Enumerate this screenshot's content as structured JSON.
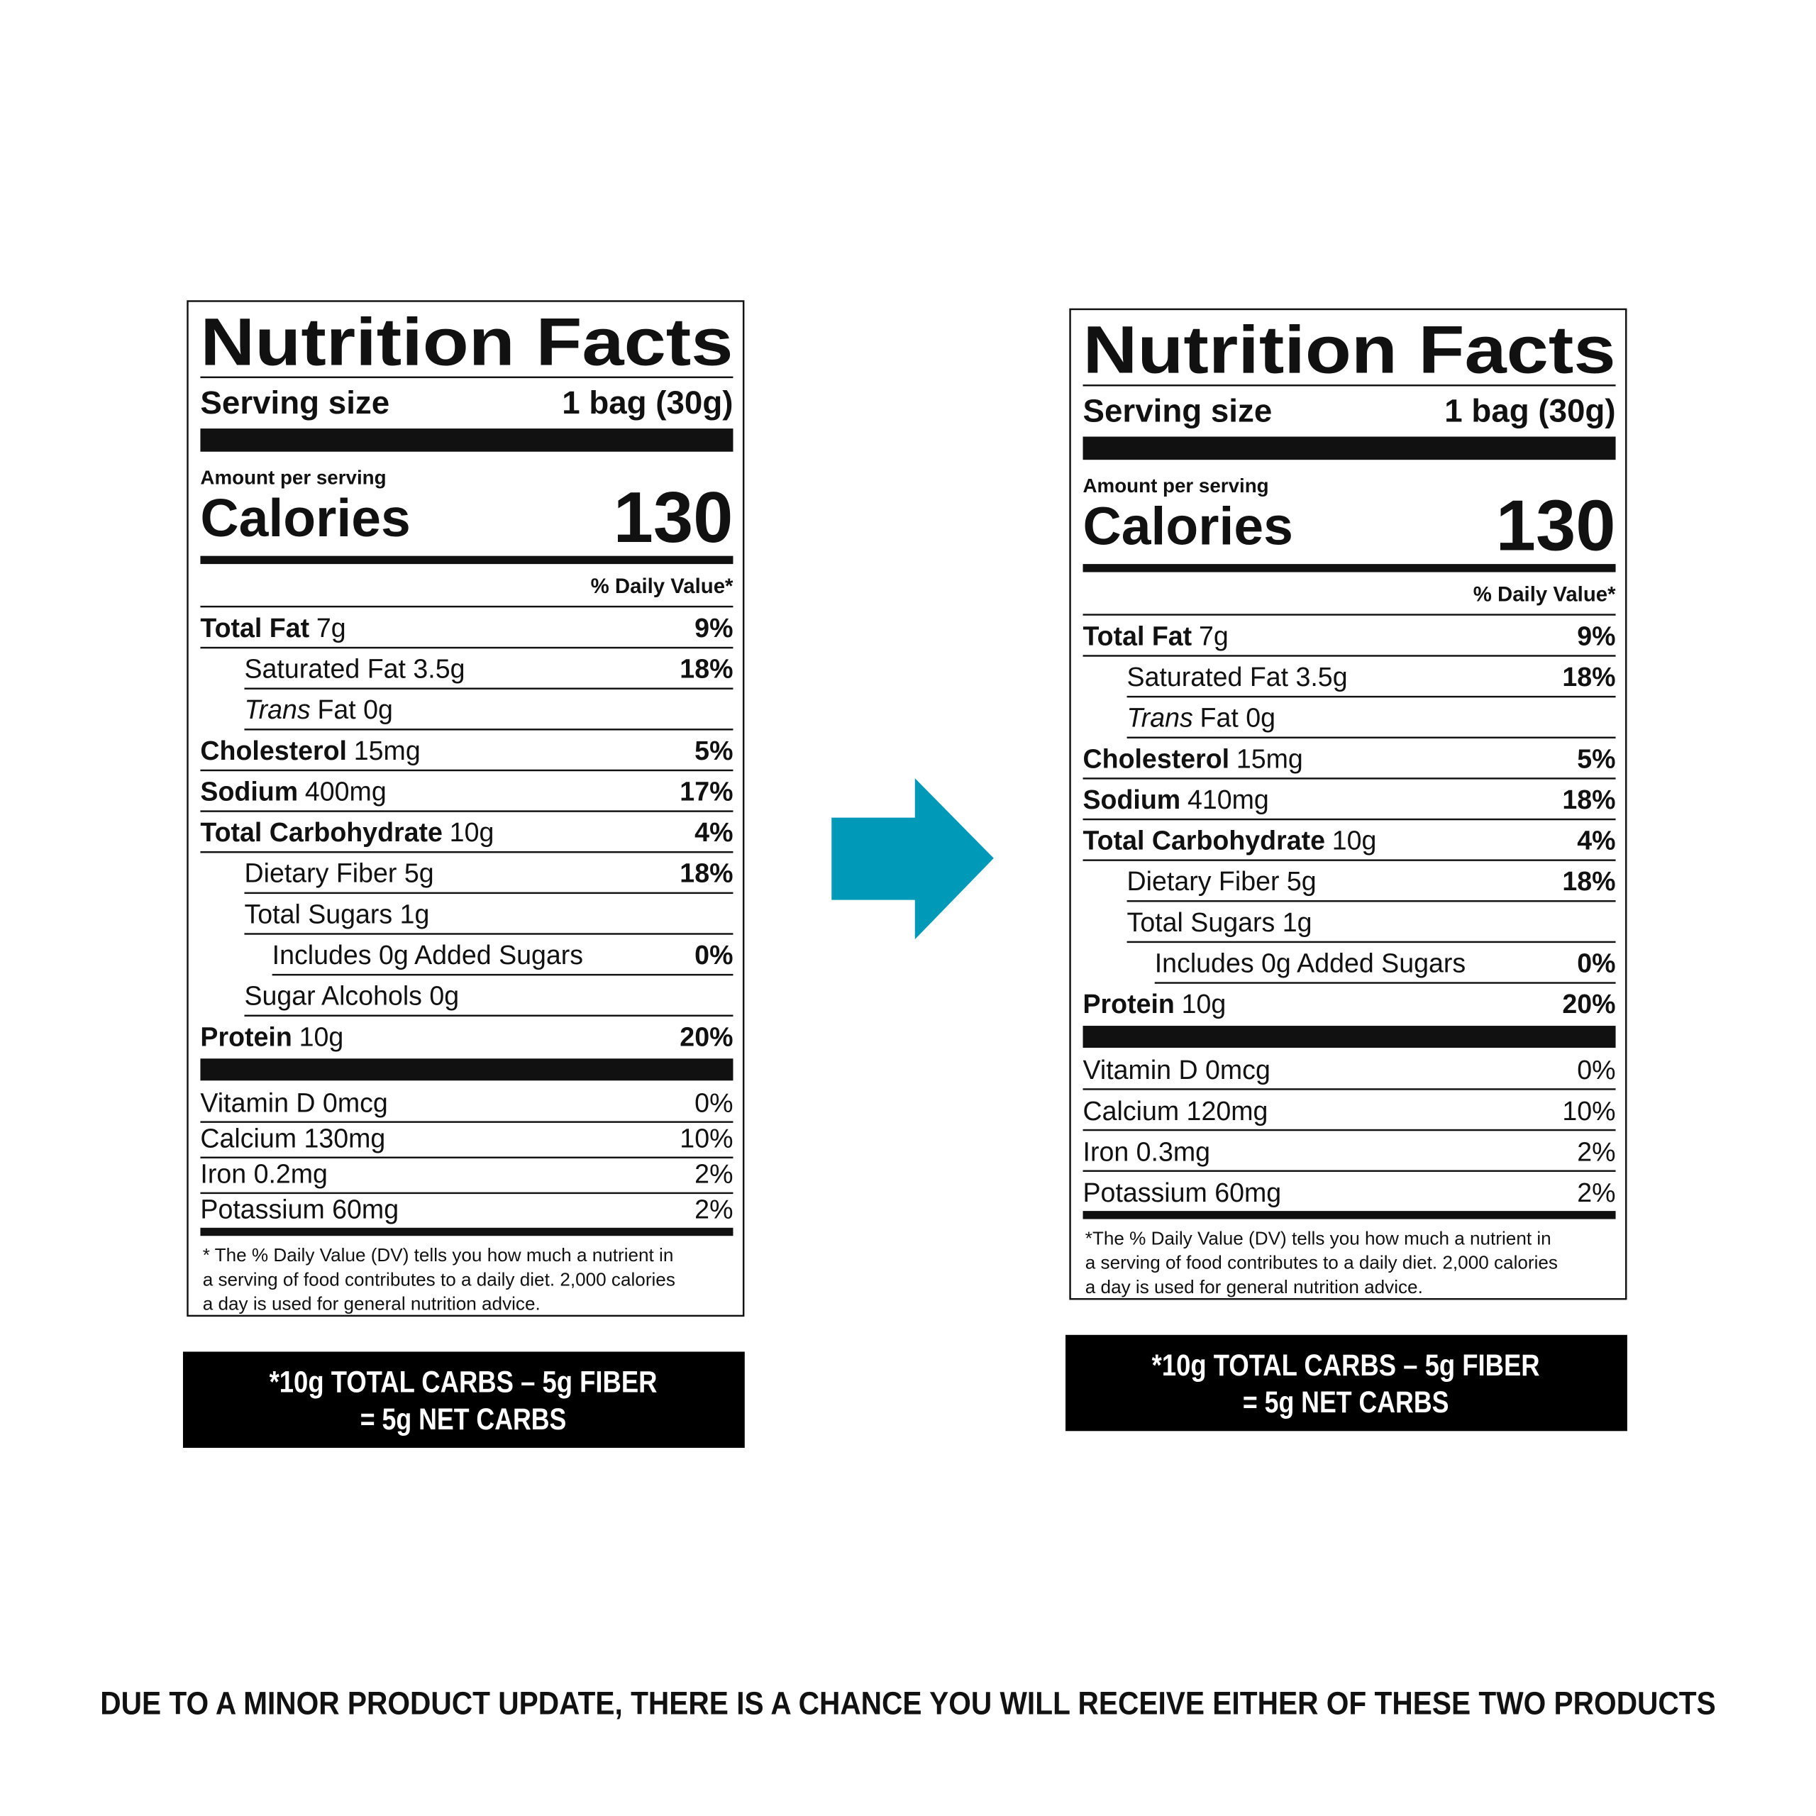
{
  "labels": [
    {
      "title": "Nutrition Facts",
      "serving_label": "Serving size",
      "serving_value": "1 bag (30g)",
      "amount_per_serving": "Amount per serving",
      "calories_label": "Calories",
      "calories_value": "130",
      "dv_header": "% Daily Value*",
      "nutrients": [
        {
          "name_bold": "Total Fat",
          "amount": "7g",
          "dv": "9%",
          "level": 0
        },
        {
          "name": "Saturated Fat 3.5g",
          "dv": "18%",
          "level": 1
        },
        {
          "name_italic": "Trans",
          "name": "Fat 0g",
          "level": 1
        },
        {
          "name_bold": "Cholesterol",
          "amount": "15mg",
          "dv": "5%",
          "level": 0
        },
        {
          "name_bold": "Sodium",
          "amount": "400mg",
          "dv": "17%",
          "level": 0
        },
        {
          "name_bold": "Total Carbohydrate",
          "amount": "10g",
          "dv": "4%",
          "level": 0
        },
        {
          "name": "Dietary Fiber 5g",
          "dv": "18%",
          "level": 1
        },
        {
          "name": "Total Sugars 1g",
          "level": 1
        },
        {
          "name": "Includes 0g Added Sugars",
          "dv": "0%",
          "level": 2
        },
        {
          "name": "Sugar Alcohols 0g",
          "level": 1
        },
        {
          "name_bold": "Protein",
          "amount": "10g",
          "dv": "20%",
          "level": 0
        }
      ],
      "vitamins": [
        {
          "name": "Vitamin D 0mcg",
          "dv": "0%"
        },
        {
          "name": "Calcium 130mg",
          "dv": "10%"
        },
        {
          "name": "Iron 0.2mg",
          "dv": "2%"
        },
        {
          "name": "Potassium 60mg",
          "dv": "2%"
        }
      ],
      "footnote": [
        "* The % Daily Value (DV) tells you how much a nutrient in",
        "a serving of food contributes to a daily diet. 2,000 calories",
        "a day is used for general nutrition advice."
      ],
      "net_carbs": [
        "*10g TOTAL CARBS – 5g FIBER",
        "= 5g NET CARBS"
      ]
    },
    {
      "title": "Nutrition Facts",
      "serving_label": "Serving size",
      "serving_value": "1 bag (30g)",
      "amount_per_serving": "Amount per serving",
      "calories_label": "Calories",
      "calories_value": "130",
      "dv_header": "% Daily Value*",
      "nutrients": [
        {
          "name_bold": "Total Fat",
          "amount": "7g",
          "dv": "9%",
          "level": 0
        },
        {
          "name": "Saturated Fat 3.5g",
          "dv": "18%",
          "level": 1
        },
        {
          "name_italic": "Trans",
          "name": "Fat 0g",
          "level": 1
        },
        {
          "name_bold": "Cholesterol",
          "amount": "15mg",
          "dv": "5%",
          "level": 0
        },
        {
          "name_bold": "Sodium",
          "amount": "410mg",
          "dv": "18%",
          "level": 0
        },
        {
          "name_bold": "Total Carbohydrate",
          "amount": "10g",
          "dv": "4%",
          "level": 0
        },
        {
          "name": "Dietary Fiber 5g",
          "dv": "18%",
          "level": 1
        },
        {
          "name": "Total Sugars 1g",
          "level": 1
        },
        {
          "name": "Includes 0g Added Sugars",
          "dv": "0%",
          "level": 2
        },
        {
          "name_bold": "Protein",
          "amount": "10g",
          "dv": "20%",
          "level": 0
        }
      ],
      "vitamins": [
        {
          "name": "Vitamin D 0mcg",
          "dv": "0%"
        },
        {
          "name": "Calcium 120mg",
          "dv": "10%"
        },
        {
          "name": "Iron 0.3mg",
          "dv": "2%"
        },
        {
          "name": "Potassium 60mg",
          "dv": "2%"
        }
      ],
      "footnote": [
        "*The % Daily Value (DV) tells you how much a nutrient in",
        "a serving of food contributes to a daily diet. 2,000 calories",
        "a day is used for general nutrition advice."
      ],
      "net_carbs": [
        "*10g TOTAL CARBS – 5g FIBER",
        "= 5g NET CARBS"
      ]
    }
  ],
  "notice": "DUE TO A MINOR PRODUCT UPDATE, THERE IS A CHANCE YOU WILL RECEIVE EITHER OF THESE TWO PRODUCTS"
}
